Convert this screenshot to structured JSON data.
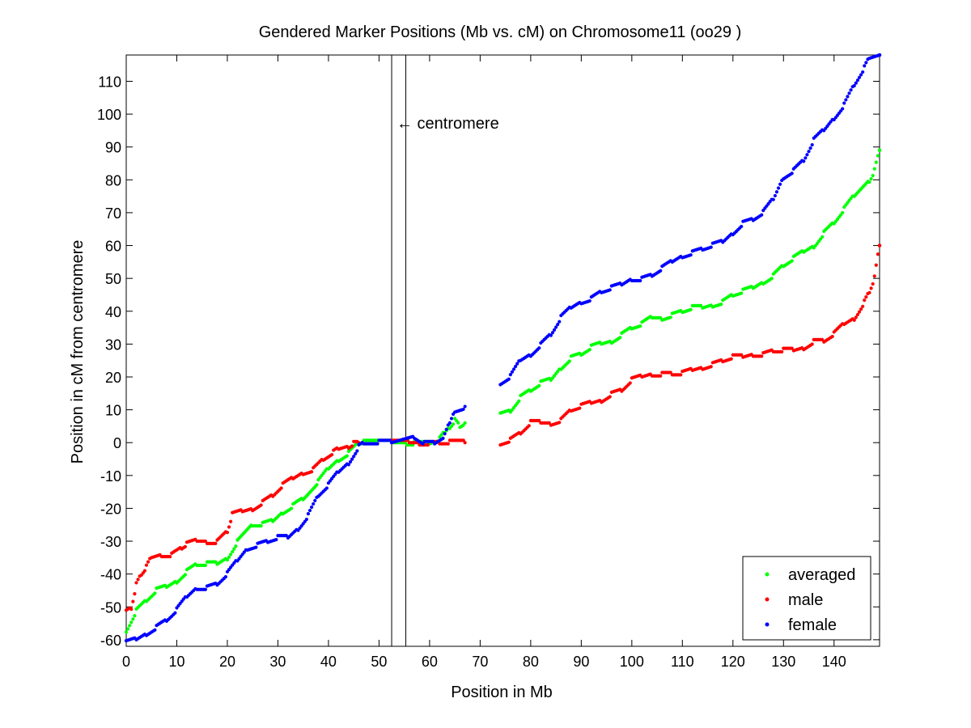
{
  "chart_data": {
    "type": "scatter",
    "title": "Gendered Marker Positions (Mb vs. cM) on Chromosome11 (oo29 )",
    "xlabel": "Position in Mb",
    "ylabel": "Position in cM from centromere",
    "xlim": [
      0,
      149
    ],
    "ylim": [
      -62,
      118
    ],
    "xticks": [
      0,
      10,
      20,
      30,
      40,
      50,
      60,
      70,
      80,
      90,
      100,
      110,
      120,
      130,
      140
    ],
    "yticks": [
      -60,
      -50,
      -40,
      -30,
      -20,
      -10,
      0,
      10,
      20,
      30,
      40,
      50,
      60,
      70,
      80,
      90,
      100,
      110
    ],
    "grid": false,
    "legend_position": "bottom-right",
    "centromere_lines": [
      52.5,
      55.3
    ],
    "annotation": {
      "text": "← centromere",
      "x": 53.5,
      "y": 96
    },
    "series": [
      {
        "name": "averaged",
        "color": "#00ff00",
        "knots": [
          [
            0,
            -57
          ],
          [
            2,
            -51
          ],
          [
            4,
            -48
          ],
          [
            6,
            -45
          ],
          [
            8,
            -44
          ],
          [
            10,
            -42
          ],
          [
            12,
            -39
          ],
          [
            14,
            -37
          ],
          [
            16,
            -37
          ],
          [
            18,
            -37
          ],
          [
            20,
            -35
          ],
          [
            22,
            -30
          ],
          [
            25,
            -25
          ],
          [
            27,
            -25
          ],
          [
            29,
            -24
          ],
          [
            31,
            -21
          ],
          [
            33,
            -19
          ],
          [
            35,
            -17
          ],
          [
            38,
            -12
          ],
          [
            40,
            -8
          ],
          [
            42,
            -5
          ],
          [
            44,
            -3
          ],
          [
            46,
            0
          ],
          [
            47,
            0
          ],
          [
            52.5,
            0
          ],
          [
            55.5,
            0
          ],
          [
            57,
            0
          ],
          [
            60,
            0
          ],
          [
            62,
            1
          ],
          [
            63,
            3
          ],
          [
            64,
            5
          ],
          [
            65,
            7
          ],
          [
            66,
            5
          ],
          [
            67,
            6
          ],
          [
            74,
            9
          ],
          [
            76,
            10
          ],
          [
            78,
            14
          ],
          [
            80,
            16
          ],
          [
            82,
            18
          ],
          [
            84,
            19
          ],
          [
            86,
            23
          ],
          [
            88,
            26
          ],
          [
            90,
            27
          ],
          [
            92,
            29
          ],
          [
            94,
            30
          ],
          [
            96,
            31
          ],
          [
            98,
            33
          ],
          [
            100,
            35
          ],
          [
            102,
            36
          ],
          [
            104,
            38
          ],
          [
            106,
            38
          ],
          [
            108,
            39
          ],
          [
            110,
            40
          ],
          [
            112,
            41
          ],
          [
            114,
            41
          ],
          [
            116,
            42
          ],
          [
            118,
            43
          ],
          [
            120,
            45
          ],
          [
            122,
            46
          ],
          [
            124,
            47
          ],
          [
            126,
            49
          ],
          [
            128,
            51
          ],
          [
            130,
            54
          ],
          [
            132,
            56
          ],
          [
            134,
            58
          ],
          [
            136,
            60
          ],
          [
            138,
            64
          ],
          [
            140,
            67
          ],
          [
            142,
            71
          ],
          [
            144,
            75
          ],
          [
            147,
            80
          ],
          [
            148,
            83
          ],
          [
            149,
            89
          ]
        ]
      },
      {
        "name": "male",
        "color": "#ff0000",
        "knots": [
          [
            0,
            -51
          ],
          [
            1,
            -50
          ],
          [
            2,
            -43
          ],
          [
            3,
            -40
          ],
          [
            4,
            -38
          ],
          [
            5,
            -35
          ],
          [
            7,
            -34
          ],
          [
            9,
            -34
          ],
          [
            11,
            -32
          ],
          [
            12,
            -31
          ],
          [
            14,
            -30
          ],
          [
            16,
            -30
          ],
          [
            18,
            -30
          ],
          [
            20,
            -27
          ],
          [
            21,
            -22
          ],
          [
            23,
            -21
          ],
          [
            25,
            -20
          ],
          [
            27,
            -18
          ],
          [
            29,
            -16
          ],
          [
            31,
            -13
          ],
          [
            33,
            -11
          ],
          [
            35,
            -9
          ],
          [
            37,
            -8
          ],
          [
            39,
            -5
          ],
          [
            41,
            -3
          ],
          [
            42,
            -2
          ],
          [
            44,
            -1
          ],
          [
            45,
            0
          ],
          [
            46,
            0
          ],
          [
            52.5,
            0
          ],
          [
            56,
            0
          ],
          [
            58,
            0
          ],
          [
            60,
            0
          ],
          [
            62,
            0
          ],
          [
            64,
            0
          ],
          [
            67,
            0
          ],
          [
            74,
            0
          ],
          [
            76,
            1
          ],
          [
            78,
            3
          ],
          [
            80,
            6
          ],
          [
            82,
            6
          ],
          [
            84,
            6
          ],
          [
            86,
            7
          ],
          [
            88,
            10
          ],
          [
            90,
            11
          ],
          [
            92,
            12
          ],
          [
            94,
            13
          ],
          [
            96,
            15
          ],
          [
            98,
            16
          ],
          [
            100,
            19
          ],
          [
            102,
            20
          ],
          [
            104,
            21
          ],
          [
            106,
            21
          ],
          [
            108,
            21
          ],
          [
            110,
            21
          ],
          [
            112,
            22
          ],
          [
            114,
            23
          ],
          [
            116,
            24
          ],
          [
            118,
            25
          ],
          [
            120,
            26
          ],
          [
            122,
            26
          ],
          [
            124,
            27
          ],
          [
            126,
            27
          ],
          [
            128,
            28
          ],
          [
            130,
            28
          ],
          [
            132,
            28
          ],
          [
            134,
            29
          ],
          [
            136,
            31
          ],
          [
            138,
            31
          ],
          [
            140,
            33
          ],
          [
            142,
            36
          ],
          [
            144,
            38
          ],
          [
            146,
            43
          ],
          [
            147,
            46
          ],
          [
            148,
            50
          ],
          [
            149,
            60
          ]
        ]
      },
      {
        "name": "female",
        "color": "#0000ff",
        "knots": [
          [
            0,
            -61
          ],
          [
            2,
            -60
          ],
          [
            4,
            -58
          ],
          [
            6,
            -56
          ],
          [
            8,
            -54
          ],
          [
            10,
            -51
          ],
          [
            12,
            -47
          ],
          [
            14,
            -44
          ],
          [
            16,
            -44
          ],
          [
            18,
            -43
          ],
          [
            20,
            -40
          ],
          [
            22,
            -36
          ],
          [
            24,
            -32
          ],
          [
            26,
            -31
          ],
          [
            28,
            -30
          ],
          [
            30,
            -29
          ],
          [
            32,
            -29
          ],
          [
            34,
            -26
          ],
          [
            36,
            -22
          ],
          [
            38,
            -16
          ],
          [
            40,
            -13
          ],
          [
            42,
            -9
          ],
          [
            44,
            -6
          ],
          [
            46,
            -1
          ],
          [
            47,
            0
          ],
          [
            50,
            0
          ],
          [
            52.5,
            0
          ],
          [
            57,
            2
          ],
          [
            59,
            0
          ],
          [
            61,
            0
          ],
          [
            63,
            2
          ],
          [
            64,
            6
          ],
          [
            65,
            10
          ],
          [
            67,
            11
          ],
          [
            74,
            18
          ],
          [
            76,
            20
          ],
          [
            78,
            25
          ],
          [
            80,
            27
          ],
          [
            82,
            30
          ],
          [
            84,
            33
          ],
          [
            86,
            38
          ],
          [
            88,
            41
          ],
          [
            90,
            43
          ],
          [
            92,
            44
          ],
          [
            94,
            46
          ],
          [
            96,
            47
          ],
          [
            98,
            48
          ],
          [
            100,
            50
          ],
          [
            102,
            50
          ],
          [
            104,
            51
          ],
          [
            106,
            53
          ],
          [
            108,
            55
          ],
          [
            110,
            57
          ],
          [
            112,
            58
          ],
          [
            114,
            59
          ],
          [
            116,
            60
          ],
          [
            118,
            61
          ],
          [
            120,
            64
          ],
          [
            122,
            67
          ],
          [
            124,
            68
          ],
          [
            126,
            70
          ],
          [
            128,
            74
          ],
          [
            130,
            81
          ],
          [
            132,
            83
          ],
          [
            134,
            86
          ],
          [
            136,
            92
          ],
          [
            138,
            95
          ],
          [
            140,
            99
          ],
          [
            142,
            103
          ],
          [
            144,
            109
          ],
          [
            146,
            114
          ],
          [
            147,
            117
          ],
          [
            149,
            118
          ]
        ]
      }
    ]
  }
}
